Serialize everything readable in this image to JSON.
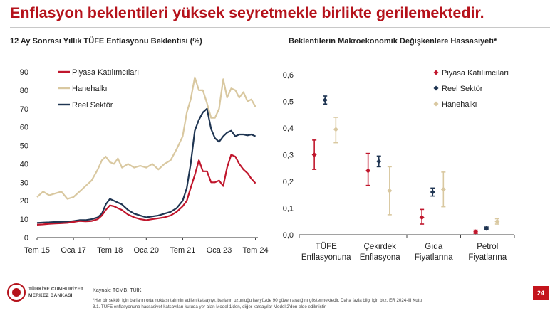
{
  "title": "Enflasyon beklentileri yüksek seyretmekle birlikte gerilemektedir.",
  "footer": {
    "org_line1": "TÜRKİYE CUMHURİYET",
    "org_line2": "MERKEZ BANKASI",
    "source": "Kaynak: TCMB, TÜİK.",
    "note_line1": "*Her bir sektör için barların orta noktası tahmin edilen katsayıyı, barların uzunluğu ise yüzde 90 güven aralığını göstermektedir. Daha fazla bilgi için bkz. ER 2024-III Kutu",
    "note_line2": "3.1. TÜFE enflasyonuna hassasiyet katsayıları kutuda yer alan Model 1'den, diğer katsayılar Model 2'den elde edilmiştir.",
    "page_number": "24"
  },
  "colors": {
    "piyasa": "#c0162c",
    "hanehalki": "#d9c8a0",
    "reel": "#1f3552",
    "accent": "#b5121b"
  },
  "chart_data": [
    {
      "type": "line",
      "title": "12 Ay Sonrası Yıllık TÜFE Enflasyonu Beklentisi (%)",
      "ylim": [
        0,
        90
      ],
      "yticks": [
        "0",
        "10",
        "20",
        "30",
        "40",
        "50",
        "60",
        "70",
        "80",
        "90"
      ],
      "xticks": [
        "Tem 15",
        "Oca 17",
        "Tem 18",
        "Oca 20",
        "Tem 21",
        "Oca 23",
        "Tem 24"
      ],
      "xrange": [
        2015.5,
        2024.6
      ],
      "legend": "top-left",
      "x": [
        2015.5,
        2015.75,
        2016,
        2016.25,
        2016.5,
        2016.75,
        2017,
        2017.25,
        2017.5,
        2017.75,
        2018,
        2018.17,
        2018.33,
        2018.5,
        2018.67,
        2018.83,
        2019,
        2019.25,
        2019.5,
        2019.75,
        2020,
        2020.25,
        2020.5,
        2020.75,
        2021,
        2021.25,
        2021.5,
        2021.67,
        2021.83,
        2022,
        2022.17,
        2022.33,
        2022.5,
        2022.67,
        2022.83,
        2023,
        2023.17,
        2023.33,
        2023.5,
        2023.67,
        2023.83,
        2024,
        2024.17,
        2024.33,
        2024.5
      ],
      "series": [
        {
          "name": "Piyasa Katılımcıları",
          "color": "#c0162c",
          "values": [
            7,
            7.2,
            7.5,
            7.7,
            7.8,
            8,
            8.5,
            9,
            8.8,
            9,
            10,
            12,
            15,
            17.5,
            17,
            16,
            15,
            12.5,
            11,
            10,
            9.5,
            10,
            10.5,
            11,
            12,
            14,
            17,
            20,
            27,
            34,
            42,
            36,
            36,
            30,
            30,
            31,
            28,
            38,
            45,
            44,
            40,
            37,
            35,
            32,
            29.5
          ]
        },
        {
          "name": "Hanehalkı",
          "color": "#d9c8a0",
          "values": [
            22,
            25,
            23,
            24,
            25,
            21,
            22,
            25,
            28,
            31,
            37,
            42,
            44,
            41,
            40,
            43,
            38,
            40,
            38,
            39,
            38,
            40,
            37,
            40,
            42,
            48,
            55,
            68,
            75,
            87,
            80,
            80,
            73,
            65,
            65,
            70,
            86,
            76,
            81,
            80,
            76,
            79,
            74,
            75,
            71
          ]
        },
        {
          "name": "Reel Sektör",
          "color": "#1f3552",
          "values": [
            8,
            8.2,
            8.3,
            8.5,
            8.5,
            8.6,
            9,
            9.5,
            9.5,
            10,
            11,
            13,
            18,
            21,
            20,
            19,
            18,
            15,
            13,
            12,
            11,
            11.5,
            12,
            13,
            14,
            16,
            20,
            27,
            40,
            58,
            64,
            68,
            70,
            59,
            54,
            52,
            55,
            57,
            58,
            55,
            56,
            56,
            55.5,
            56,
            55
          ]
        }
      ]
    },
    {
      "type": "scatter",
      "title": "Beklentilerin Makroekonomik Değişkenlere Hassasiyeti*",
      "ylim": [
        0,
        0.6
      ],
      "yticks": [
        "0,0",
        "0,1",
        "0,2",
        "0,3",
        "0,4",
        "0,5",
        "0,6"
      ],
      "categories": [
        [
          "TÜFE",
          "Enflasyonuna"
        ],
        [
          "Çekirdek",
          "Enflasyona"
        ],
        [
          "Gıda",
          "Fiyatlarına"
        ],
        [
          "Petrol",
          "Fiyatlarına"
        ]
      ],
      "legend": "top-right",
      "series": [
        {
          "name": "Piyasa Katılımcıları",
          "color": "#c0162c",
          "points": [
            {
              "mid": 0.3,
              "low": 0.245,
              "high": 0.355
            },
            {
              "mid": 0.24,
              "low": 0.185,
              "high": 0.305
            },
            {
              "mid": 0.065,
              "low": 0.04,
              "high": 0.095
            },
            {
              "mid": 0.011,
              "low": 0.005,
              "high": 0.017
            }
          ]
        },
        {
          "name": "Reel Sektör",
          "color": "#1f3552",
          "points": [
            {
              "mid": 0.505,
              "low": 0.49,
              "high": 0.52
            },
            {
              "mid": 0.275,
              "low": 0.255,
              "high": 0.295
            },
            {
              "mid": 0.16,
              "low": 0.145,
              "high": 0.175
            },
            {
              "mid": 0.024,
              "low": 0.019,
              "high": 0.029
            }
          ]
        },
        {
          "name": "Hanehalkı",
          "color": "#d9c8a0",
          "points": [
            {
              "mid": 0.395,
              "low": 0.345,
              "high": 0.44
            },
            {
              "mid": 0.165,
              "low": 0.075,
              "high": 0.255
            },
            {
              "mid": 0.17,
              "low": 0.105,
              "high": 0.235
            },
            {
              "mid": 0.05,
              "low": 0.04,
              "high": 0.06
            }
          ]
        }
      ]
    }
  ]
}
